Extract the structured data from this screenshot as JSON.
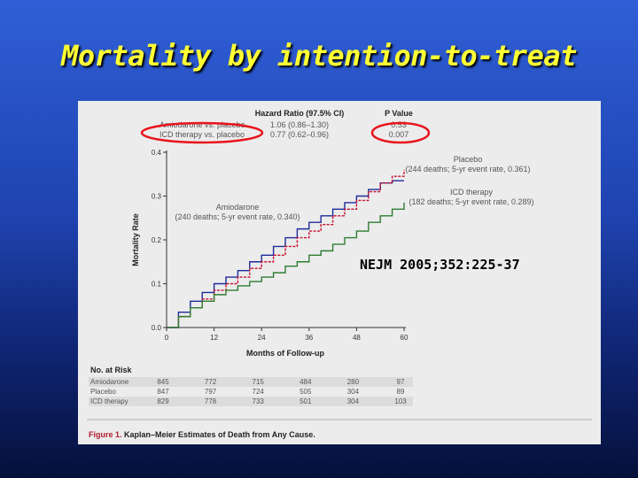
{
  "slide": {
    "title": "Mortality by intention-to-treat",
    "citation": "NEJM 2005;352:225-37"
  },
  "chart_data": {
    "type": "line",
    "ylabel": "Mortality Rate",
    "xlabel": "Months of Follow-up",
    "xlim": [
      0,
      60
    ],
    "ylim": [
      0,
      0.4
    ],
    "x_ticks": [
      0,
      12,
      24,
      36,
      48,
      60
    ],
    "y_ticks": [
      0.0,
      0.1,
      0.2,
      0.3,
      0.4
    ],
    "x_tick_labels": [
      "0",
      "12",
      "24",
      "36",
      "48",
      "60"
    ],
    "y_tick_labels": [
      "0.0",
      "0.1",
      "0.2",
      "0.3",
      "0.4"
    ],
    "colors": {
      "amiodarone": "#1f2a9c",
      "placebo": "#c8102e",
      "icd": "#2e7d32"
    },
    "series": [
      {
        "key": "amiodarone",
        "name": "Amiodarone",
        "annotation": "(240 deaths; 5-yr event rate, 0.340)",
        "x": [
          0,
          3,
          6,
          9,
          12,
          15,
          18,
          21,
          24,
          27,
          30,
          33,
          36,
          39,
          42,
          45,
          48,
          51,
          54,
          57,
          60
        ],
        "y": [
          0,
          0.035,
          0.06,
          0.08,
          0.1,
          0.115,
          0.13,
          0.15,
          0.165,
          0.185,
          0.205,
          0.225,
          0.24,
          0.255,
          0.27,
          0.285,
          0.3,
          0.315,
          0.33,
          0.335,
          0.335
        ]
      },
      {
        "key": "placebo",
        "name": "Placebo",
        "annotation": "(244 deaths; 5-yr event rate, 0.361)",
        "x": [
          0,
          3,
          6,
          9,
          12,
          15,
          18,
          21,
          24,
          27,
          30,
          33,
          36,
          39,
          42,
          45,
          48,
          51,
          54,
          57,
          60
        ],
        "y": [
          0,
          0.025,
          0.045,
          0.065,
          0.085,
          0.1,
          0.115,
          0.135,
          0.15,
          0.165,
          0.185,
          0.205,
          0.22,
          0.235,
          0.255,
          0.27,
          0.29,
          0.31,
          0.33,
          0.345,
          0.36
        ]
      },
      {
        "key": "icd",
        "name": "ICD therapy",
        "annotation": "(182 deaths; 5-yr event rate, 0.289)",
        "x": [
          0,
          3,
          6,
          9,
          12,
          15,
          18,
          21,
          24,
          27,
          30,
          33,
          36,
          39,
          42,
          45,
          48,
          51,
          54,
          57,
          60
        ],
        "y": [
          0,
          0.025,
          0.045,
          0.06,
          0.075,
          0.085,
          0.095,
          0.105,
          0.115,
          0.125,
          0.14,
          0.15,
          0.165,
          0.175,
          0.19,
          0.205,
          0.22,
          0.24,
          0.255,
          0.27,
          0.285
        ]
      }
    ],
    "hazard_table": {
      "headers": [
        "Hazard Ratio (97.5% CI)",
        "P Value"
      ],
      "rows": [
        {
          "label": "Amiodarone vs. placebo",
          "hr": "1.06 (0.86–1.30)",
          "p": "0.53"
        },
        {
          "label": "ICD therapy vs. placebo",
          "hr": "0.77 (0.62–0.96)",
          "p": "0.007"
        }
      ]
    },
    "at_risk": {
      "title": "No. at Risk",
      "rows": [
        {
          "label": "Amiodarone",
          "values": [
            "845",
            "772",
            "715",
            "484",
            "280",
            "97"
          ]
        },
        {
          "label": "Placebo",
          "values": [
            "847",
            "797",
            "724",
            "505",
            "304",
            "89"
          ]
        },
        {
          "label": "ICD therapy",
          "values": [
            "829",
            "778",
            "733",
            "501",
            "304",
            "103"
          ]
        }
      ]
    },
    "caption": {
      "number": "Figure 1.",
      "text": "Kaplan–Meier Estimates of Death from Any Cause."
    },
    "highlight_color": "#e8141b"
  }
}
